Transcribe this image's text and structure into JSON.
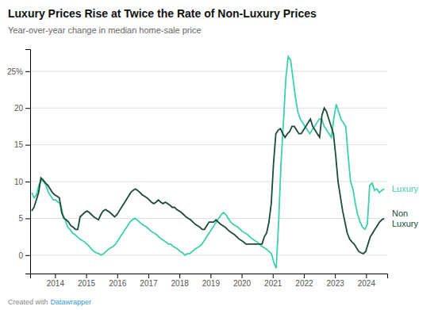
{
  "chart_data": {
    "type": "line",
    "title": "Luxury Prices Rise at Twice the Rate of Non-Luxury Prices",
    "subtitle": "Year-over-year change in median home-sale price",
    "annotations": [
      "Created with",
      "Datawrapper"
    ],
    "xlim": [
      2013.2,
      2024.68
    ],
    "xticks": [
      2014,
      2015,
      2016,
      2017,
      2018,
      2019,
      2020,
      2021,
      2022,
      2023,
      2024
    ],
    "ylim": [
      -2.5,
      28
    ],
    "yticks": [
      0,
      5,
      10,
      15,
      20,
      {
        "value": 25,
        "label": "25%"
      }
    ],
    "grid": true,
    "series": [
      {
        "name": "Luxury",
        "color": "#3ecfab",
        "x": [
          2013.25,
          2013.3271,
          2013.4041,
          2013.4812,
          2013.5583,
          2013.6354,
          2013.7124,
          2013.7895,
          2013.8666,
          2013.9437,
          2014.0207,
          2014.0978,
          2014.1749,
          2014.252,
          2014.329,
          2014.4061,
          2014.4832,
          2014.5603,
          2014.6373,
          2014.7144,
          2014.7915,
          2014.8686,
          2014.9456,
          2015.0227,
          2015.0998,
          2015.1769,
          2015.2539,
          2015.331,
          2015.4081,
          2015.4852,
          2015.5622,
          2015.6393,
          2015.7164,
          2015.7935,
          2015.8705,
          2015.9476,
          2016.0247,
          2016.1018,
          2016.1788,
          2016.2559,
          2016.333,
          2016.4101,
          2016.4871,
          2016.5642,
          2016.6413,
          2016.7184,
          2016.7954,
          2016.8725,
          2016.9496,
          2017.0267,
          2017.1037,
          2017.1808,
          2017.2579,
          2017.335,
          2017.412,
          2017.4891,
          2017.5662,
          2017.6433,
          2017.7203,
          2017.7974,
          2017.8745,
          2017.9516,
          2018.0286,
          2018.1057,
          2018.1828,
          2018.2599,
          2018.3369,
          2018.414,
          2018.4911,
          2018.5682,
          2018.6452,
          2018.7223,
          2018.7994,
          2018.8765,
          2018.9535,
          2019.0306,
          2019.1077,
          2019.1848,
          2019.2618,
          2019.3389,
          2019.416,
          2019.4931,
          2019.5701,
          2019.6472,
          2019.7243,
          2019.8014,
          2019.8784,
          2019.9555,
          2020.0326,
          2020.1097,
          2020.1867,
          2020.2638,
          2020.3409,
          2020.418,
          2020.495,
          2020.5721,
          2020.6492,
          2020.7263,
          2020.8033,
          2020.8804,
          2020.9575,
          2021.0346,
          2021.1116,
          2021.1887,
          2021.2658,
          2021.3429,
          2021.4199,
          2021.497,
          2021.5741,
          2021.6512,
          2021.7282,
          2021.8053,
          2021.8824,
          2021.9595,
          2022.0365,
          2022.1136,
          2022.1907,
          2022.2678,
          2022.3448,
          2022.4219,
          2022.499,
          2022.5761,
          2022.6531,
          2022.7302,
          2022.8073,
          2022.8844,
          2022.9614,
          2023.0385,
          2023.1156,
          2023.1927,
          2023.2697,
          2023.3468,
          2023.4239,
          2023.501,
          2023.578,
          2023.6551,
          2023.7322,
          2023.8093,
          2023.8863,
          2023.9634,
          2024.0405,
          2024.1176,
          2024.1946,
          2024.2717,
          2024.3488,
          2024.4259,
          2024.5029,
          2024.58
        ],
        "values": [
          8.5,
          7.8,
          8.2,
          9.5,
          10.2,
          10.0,
          9.5,
          8.5,
          8.0,
          7.5,
          7.5,
          7.2,
          7.0,
          5.5,
          4.8,
          3.8,
          3.5,
          3.0,
          2.8,
          2.5,
          2.2,
          2.0,
          1.8,
          1.5,
          1.2,
          0.8,
          0.5,
          0.3,
          0.2,
          0.0,
          0.2,
          0.5,
          0.8,
          1.0,
          1.2,
          1.5,
          2.0,
          2.5,
          3.0,
          3.5,
          4.0,
          4.5,
          4.8,
          5.0,
          4.8,
          4.5,
          4.2,
          4.0,
          3.8,
          3.5,
          3.2,
          3.0,
          2.8,
          2.5,
          2.2,
          2.0,
          1.8,
          1.5,
          1.5,
          1.2,
          1.0,
          0.8,
          0.5,
          0.3,
          0.0,
          0.2,
          0.2,
          0.5,
          0.8,
          1.0,
          1.2,
          1.5,
          2.0,
          2.5,
          3.0,
          3.5,
          4.0,
          4.5,
          5.0,
          5.5,
          5.8,
          5.5,
          5.0,
          4.5,
          4.2,
          4.0,
          3.8,
          3.5,
          3.2,
          3.0,
          2.8,
          2.5,
          2.2,
          2.0,
          1.8,
          1.5,
          1.2,
          1.0,
          0.8,
          0.5,
          0.2,
          -1.0,
          -1.8,
          4.5,
          12.5,
          18.0,
          24.0,
          27.0,
          26.5,
          24.0,
          21.5,
          19.5,
          18.5,
          18.0,
          17.5,
          17.0,
          16.5,
          17.0,
          17.5,
          18.0,
          18.5,
          18.5,
          17.5,
          17.0,
          16.5,
          16.0,
          18.5,
          20.5,
          19.5,
          18.5,
          18.0,
          17.5,
          13.5,
          10.0,
          9.0,
          7.0,
          5.5,
          4.5,
          3.8,
          3.5,
          4.2,
          9.5,
          9.8,
          8.8,
          9.0,
          8.5,
          8.8,
          9.0
        ]
      },
      {
        "name": "Non\nLuxury",
        "color": "#1a4a3a",
        "x": [
          2013.25,
          2013.3241,
          2013.3981,
          2013.4722,
          2013.5462,
          2013.6203,
          2013.6943,
          2013.7684,
          2013.8424,
          2013.9165,
          2013.9905,
          2014.0646,
          2014.1386,
          2014.2127,
          2014.2867,
          2014.3608,
          2014.4348,
          2014.5089,
          2014.5829,
          2014.657,
          2014.731,
          2014.8051,
          2014.8792,
          2014.9532,
          2015.0273,
          2015.1013,
          2015.1754,
          2015.2494,
          2015.3235,
          2015.3975,
          2015.4716,
          2015.5456,
          2015.6197,
          2015.6937,
          2015.7678,
          2015.8418,
          2015.9159,
          2015.9899,
          2016.064,
          2016.138,
          2016.2121,
          2016.2861,
          2016.3602,
          2016.4342,
          2016.5083,
          2016.5824,
          2016.6564,
          2016.7305,
          2016.8045,
          2016.8786,
          2016.9526,
          2017.0267,
          2017.1007,
          2017.1748,
          2017.2488,
          2017.3229,
          2017.3969,
          2017.471,
          2017.545,
          2017.6191,
          2017.6931,
          2017.7672,
          2017.8412,
          2017.9153,
          2017.9893,
          2018.0634,
          2018.1375,
          2018.2115,
          2018.2856,
          2018.3596,
          2018.4337,
          2018.5077,
          2018.5818,
          2018.6558,
          2018.7299,
          2018.8039,
          2018.878,
          2018.952,
          2019.0261,
          2019.1001,
          2019.1742,
          2019.2482,
          2019.3223,
          2019.3963,
          2019.4704,
          2019.5444,
          2019.6185,
          2019.6925,
          2019.7666,
          2019.8407,
          2019.9147,
          2019.9888,
          2020.0628,
          2020.1369,
          2020.2109,
          2020.285,
          2020.359,
          2020.4331,
          2020.5071,
          2020.5812,
          2020.6552,
          2020.7293,
          2020.8033,
          2020.8774,
          2020.9514,
          2021.0255,
          2021.0995,
          2021.1736,
          2021.2476,
          2021.3217,
          2021.3958,
          2021.4698,
          2021.5439,
          2021.6179,
          2021.692,
          2021.766,
          2021.8401,
          2021.9141,
          2021.9882,
          2022.0622,
          2022.1363,
          2022.2103,
          2022.2844,
          2022.3584,
          2022.4325,
          2022.5065,
          2022.5806,
          2022.6546,
          2022.7287,
          2022.8027,
          2022.8768,
          2022.9508,
          2023.0249,
          2023.099,
          2023.173,
          2023.2471,
          2023.3211,
          2023.3952,
          2023.4692,
          2023.5433,
          2023.6173,
          2023.6914,
          2023.7654,
          2023.8395,
          2023.9135,
          2023.9876,
          2024.0616,
          2024.1357,
          2024.2097,
          2024.2838,
          2024.3578,
          2024.4319,
          2024.5059,
          2024.58
        ],
        "values": [
          6.0,
          6.5,
          7.5,
          8.5,
          10.5,
          10.2,
          9.8,
          9.5,
          9.0,
          8.5,
          8.2,
          8.0,
          7.8,
          5.8,
          5.0,
          4.8,
          4.5,
          4.0,
          3.8,
          3.5,
          3.5,
          5.2,
          5.5,
          5.8,
          6.0,
          5.8,
          5.5,
          5.2,
          5.0,
          4.8,
          5.5,
          6.0,
          6.2,
          6.0,
          5.8,
          5.5,
          5.2,
          5.5,
          6.0,
          6.5,
          7.0,
          7.5,
          8.0,
          8.5,
          8.8,
          9.0,
          8.8,
          8.5,
          8.2,
          8.0,
          7.8,
          7.5,
          7.2,
          7.0,
          7.2,
          7.5,
          7.2,
          7.0,
          7.2,
          7.0,
          6.8,
          6.5,
          6.5,
          6.2,
          6.0,
          5.8,
          5.5,
          5.2,
          5.0,
          4.8,
          4.5,
          4.2,
          4.0,
          3.8,
          3.5,
          3.5,
          4.0,
          4.5,
          4.5,
          4.5,
          4.8,
          4.5,
          4.2,
          4.0,
          3.8,
          3.5,
          3.2,
          3.0,
          2.8,
          2.5,
          2.2,
          2.0,
          1.8,
          1.5,
          1.5,
          1.5,
          1.5,
          1.5,
          1.5,
          1.5,
          1.5,
          2.5,
          3.0,
          4.5,
          7.0,
          12.5,
          16.5,
          17.0,
          17.2,
          16.5,
          16.0,
          16.5,
          16.8,
          17.5,
          17.5,
          17.0,
          16.5,
          16.5,
          17.0,
          17.5,
          18.0,
          18.5,
          17.5,
          17.0,
          16.5,
          16.0,
          19.0,
          20.0,
          19.5,
          18.5,
          17.5,
          16.5,
          13.5,
          10.0,
          8.0,
          6.0,
          4.5,
          3.0,
          2.2,
          1.8,
          1.5,
          1.0,
          0.5,
          0.3,
          0.2,
          0.5,
          1.5,
          2.5,
          3.0,
          3.5,
          4.0,
          4.5,
          4.8,
          5.0
        ]
      }
    ]
  }
}
